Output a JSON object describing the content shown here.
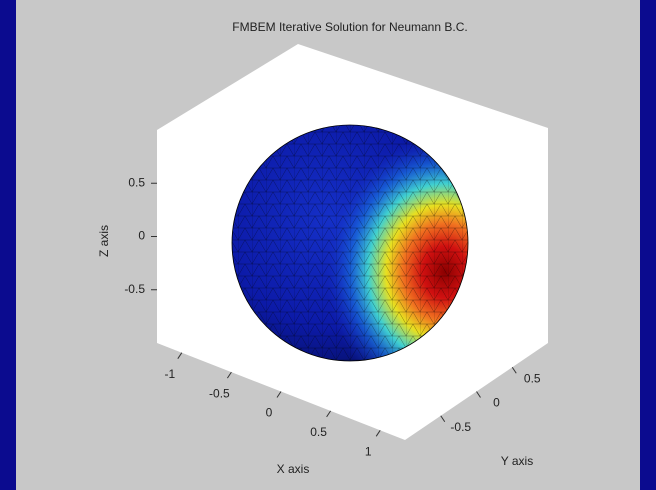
{
  "chart_data": {
    "type": "sphere3d",
    "title": "FMBEM Iterative Solution for Neumann B.C.",
    "xlabel": "X axis",
    "ylabel": "Y axis",
    "zlabel": "Z axis",
    "xlim": [
      -1.25,
      1.25
    ],
    "xticks": [
      -1,
      -0.5,
      0,
      0.5,
      1
    ],
    "ylim": [
      -1,
      1
    ],
    "yticks": [
      -0.5,
      0,
      0.5
    ],
    "zlim": [
      -1,
      1
    ],
    "zticks": [
      -0.5,
      0,
      0.5
    ]
  }
}
